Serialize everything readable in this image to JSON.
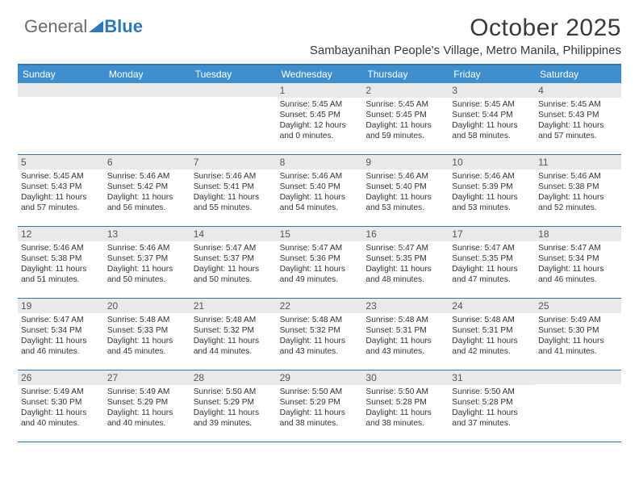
{
  "logo": {
    "part1": "General",
    "part2": "Blue"
  },
  "title": "October 2025",
  "subtitle": "Sambayanihan People's Village, Metro Manila, Philippines",
  "weekdays": [
    "Sunday",
    "Monday",
    "Tuesday",
    "Wednesday",
    "Thursday",
    "Friday",
    "Saturday"
  ],
  "colors": {
    "header_bar": "#3f8fcf",
    "border": "#2e78b9",
    "daynum_bg": "#e9e9e9",
    "text": "#333333",
    "logo_gray": "#6b6b6b",
    "logo_blue": "#2e78b9",
    "background": "#ffffff"
  },
  "layout": {
    "columns": 7,
    "rows": 5,
    "start_weekday_index": 3
  },
  "days": [
    {
      "n": "1",
      "sunrise": "5:45 AM",
      "sunset": "5:45 PM",
      "daylight": "12 hours and 0 minutes."
    },
    {
      "n": "2",
      "sunrise": "5:45 AM",
      "sunset": "5:45 PM",
      "daylight": "11 hours and 59 minutes."
    },
    {
      "n": "3",
      "sunrise": "5:45 AM",
      "sunset": "5:44 PM",
      "daylight": "11 hours and 58 minutes."
    },
    {
      "n": "4",
      "sunrise": "5:45 AM",
      "sunset": "5:43 PM",
      "daylight": "11 hours and 57 minutes."
    },
    {
      "n": "5",
      "sunrise": "5:45 AM",
      "sunset": "5:43 PM",
      "daylight": "11 hours and 57 minutes."
    },
    {
      "n": "6",
      "sunrise": "5:46 AM",
      "sunset": "5:42 PM",
      "daylight": "11 hours and 56 minutes."
    },
    {
      "n": "7",
      "sunrise": "5:46 AM",
      "sunset": "5:41 PM",
      "daylight": "11 hours and 55 minutes."
    },
    {
      "n": "8",
      "sunrise": "5:46 AM",
      "sunset": "5:40 PM",
      "daylight": "11 hours and 54 minutes."
    },
    {
      "n": "9",
      "sunrise": "5:46 AM",
      "sunset": "5:40 PM",
      "daylight": "11 hours and 53 minutes."
    },
    {
      "n": "10",
      "sunrise": "5:46 AM",
      "sunset": "5:39 PM",
      "daylight": "11 hours and 53 minutes."
    },
    {
      "n": "11",
      "sunrise": "5:46 AM",
      "sunset": "5:38 PM",
      "daylight": "11 hours and 52 minutes."
    },
    {
      "n": "12",
      "sunrise": "5:46 AM",
      "sunset": "5:38 PM",
      "daylight": "11 hours and 51 minutes."
    },
    {
      "n": "13",
      "sunrise": "5:46 AM",
      "sunset": "5:37 PM",
      "daylight": "11 hours and 50 minutes."
    },
    {
      "n": "14",
      "sunrise": "5:47 AM",
      "sunset": "5:37 PM",
      "daylight": "11 hours and 50 minutes."
    },
    {
      "n": "15",
      "sunrise": "5:47 AM",
      "sunset": "5:36 PM",
      "daylight": "11 hours and 49 minutes."
    },
    {
      "n": "16",
      "sunrise": "5:47 AM",
      "sunset": "5:35 PM",
      "daylight": "11 hours and 48 minutes."
    },
    {
      "n": "17",
      "sunrise": "5:47 AM",
      "sunset": "5:35 PM",
      "daylight": "11 hours and 47 minutes."
    },
    {
      "n": "18",
      "sunrise": "5:47 AM",
      "sunset": "5:34 PM",
      "daylight": "11 hours and 46 minutes."
    },
    {
      "n": "19",
      "sunrise": "5:47 AM",
      "sunset": "5:34 PM",
      "daylight": "11 hours and 46 minutes."
    },
    {
      "n": "20",
      "sunrise": "5:48 AM",
      "sunset": "5:33 PM",
      "daylight": "11 hours and 45 minutes."
    },
    {
      "n": "21",
      "sunrise": "5:48 AM",
      "sunset": "5:32 PM",
      "daylight": "11 hours and 44 minutes."
    },
    {
      "n": "22",
      "sunrise": "5:48 AM",
      "sunset": "5:32 PM",
      "daylight": "11 hours and 43 minutes."
    },
    {
      "n": "23",
      "sunrise": "5:48 AM",
      "sunset": "5:31 PM",
      "daylight": "11 hours and 43 minutes."
    },
    {
      "n": "24",
      "sunrise": "5:48 AM",
      "sunset": "5:31 PM",
      "daylight": "11 hours and 42 minutes."
    },
    {
      "n": "25",
      "sunrise": "5:49 AM",
      "sunset": "5:30 PM",
      "daylight": "11 hours and 41 minutes."
    },
    {
      "n": "26",
      "sunrise": "5:49 AM",
      "sunset": "5:30 PM",
      "daylight": "11 hours and 40 minutes."
    },
    {
      "n": "27",
      "sunrise": "5:49 AM",
      "sunset": "5:29 PM",
      "daylight": "11 hours and 40 minutes."
    },
    {
      "n": "28",
      "sunrise": "5:50 AM",
      "sunset": "5:29 PM",
      "daylight": "11 hours and 39 minutes."
    },
    {
      "n": "29",
      "sunrise": "5:50 AM",
      "sunset": "5:29 PM",
      "daylight": "11 hours and 38 minutes."
    },
    {
      "n": "30",
      "sunrise": "5:50 AM",
      "sunset": "5:28 PM",
      "daylight": "11 hours and 38 minutes."
    },
    {
      "n": "31",
      "sunrise": "5:50 AM",
      "sunset": "5:28 PM",
      "daylight": "11 hours and 37 minutes."
    }
  ],
  "labels": {
    "sunrise": "Sunrise: ",
    "sunset": "Sunset: ",
    "daylight": "Daylight: "
  }
}
